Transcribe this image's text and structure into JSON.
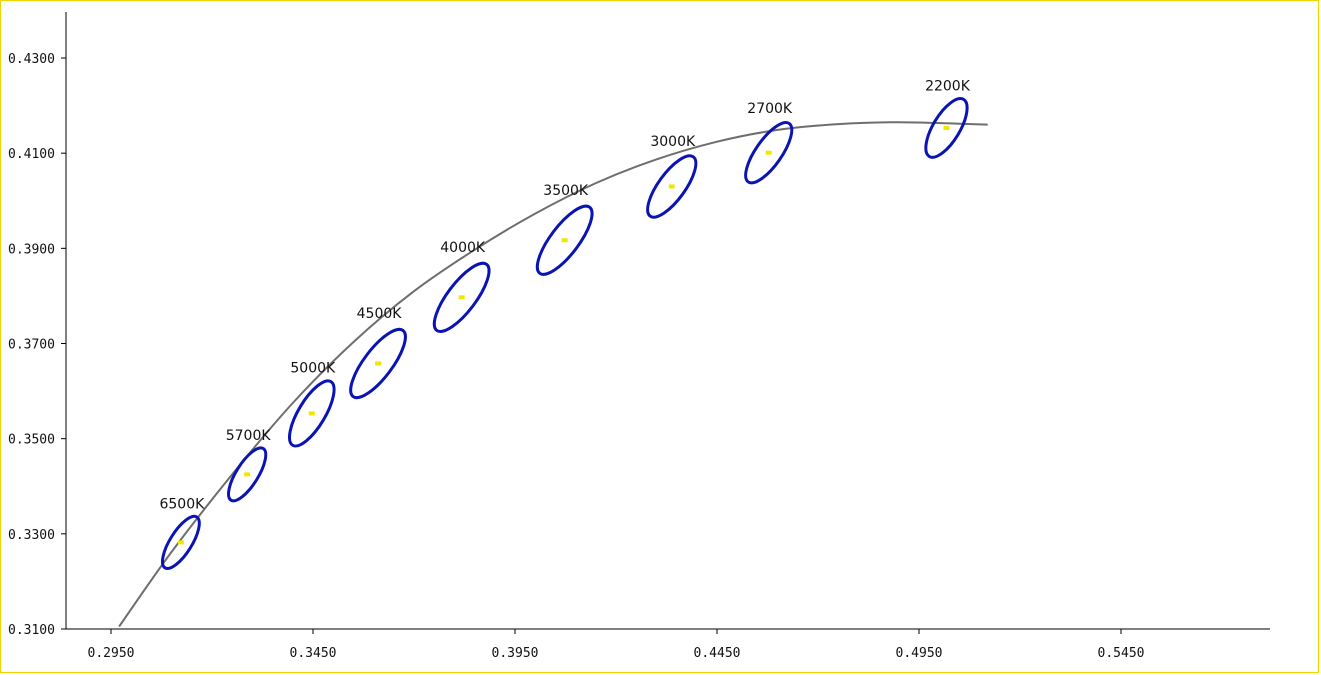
{
  "chart_data": {
    "type": "scatter",
    "title": "",
    "xlabel": "",
    "ylabel": "",
    "xlim": [
      0.295,
      0.57
    ],
    "ylim": [
      0.31,
      0.435
    ],
    "x_ticks": [
      "0.2950",
      "0.3450",
      "0.3950",
      "0.4450",
      "0.4950",
      "0.5450"
    ],
    "x_tick_values": [
      0.295,
      0.345,
      0.395,
      0.445,
      0.495,
      0.545
    ],
    "y_ticks": [
      "0.3100",
      "0.3300",
      "0.3500",
      "0.3700",
      "0.3900",
      "0.4100",
      "0.4300"
    ],
    "y_tick_values": [
      0.31,
      0.33,
      0.35,
      0.37,
      0.39,
      0.41,
      0.43
    ],
    "grid": false,
    "colors": {
      "ellipse": "#0a14b4",
      "center": "#f2e600",
      "curve": "#6e6e6e",
      "frame": "#f0d400"
    },
    "planckian_locus": {
      "x": [
        0.297,
        0.31,
        0.325,
        0.34,
        0.355,
        0.37,
        0.385,
        0.4,
        0.415,
        0.43,
        0.445,
        0.46,
        0.475,
        0.49,
        0.505,
        0.512
      ],
      "y": [
        0.3105,
        0.3262,
        0.3425,
        0.3575,
        0.3703,
        0.381,
        0.3897,
        0.3973,
        0.4037,
        0.4087,
        0.4124,
        0.4149,
        0.4161,
        0.4165,
        0.4162,
        0.416
      ]
    },
    "points": [
      {
        "label": "6500K",
        "x": 0.3123,
        "y": 0.3282,
        "a": 0.0063,
        "b": 0.0027,
        "angle": 58.0
      },
      {
        "label": "5700K",
        "x": 0.3287,
        "y": 0.3425,
        "a": 0.0064,
        "b": 0.0027,
        "angle": 58.0
      },
      {
        "label": "5000K",
        "x": 0.3447,
        "y": 0.3553,
        "a": 0.0078,
        "b": 0.0033,
        "angle": 59.0
      },
      {
        "label": "4500K",
        "x": 0.3611,
        "y": 0.3658,
        "a": 0.0087,
        "b": 0.0035,
        "angle": 53.0
      },
      {
        "label": "4000K",
        "x": 0.3818,
        "y": 0.3797,
        "a": 0.0087,
        "b": 0.0035,
        "angle": 53.0
      },
      {
        "label": "3500K",
        "x": 0.4073,
        "y": 0.3917,
        "a": 0.0087,
        "b": 0.0035,
        "angle": 53.0
      },
      {
        "label": "3000K",
        "x": 0.4338,
        "y": 0.403,
        "a": 0.0077,
        "b": 0.0033,
        "angle": 54.0
      },
      {
        "label": "2700K",
        "x": 0.4578,
        "y": 0.4101,
        "a": 0.0075,
        "b": 0.0032,
        "angle": 55.0
      },
      {
        "label": "2200K",
        "x": 0.5018,
        "y": 0.4153,
        "a": 0.007,
        "b": 0.0033,
        "angle": 59.0
      }
    ]
  }
}
